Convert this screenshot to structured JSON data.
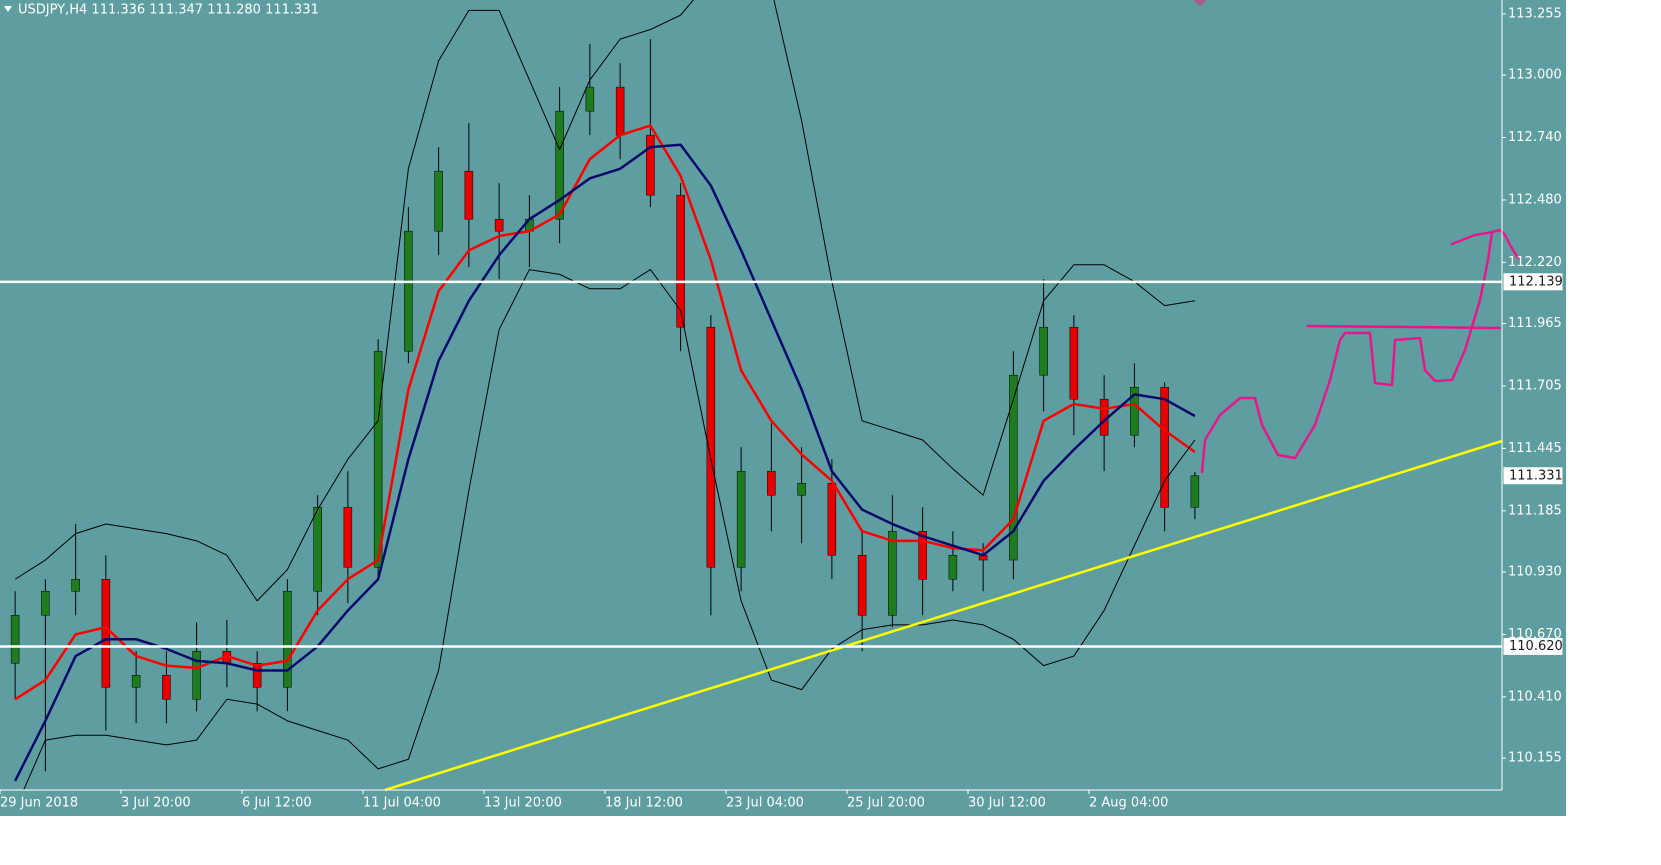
{
  "chart_data": {
    "type": "candlestick",
    "title": "USDJPY,H4  111.336 111.347 111.280 111.331",
    "categories": [
      "29 Jun 2018",
      null,
      null,
      null,
      "3 Jul 20:00",
      null,
      null,
      null,
      "6 Jul 12:00",
      null,
      null,
      null,
      "11 Jul 04:00",
      null,
      null,
      null,
      "13 Jul 20:00",
      null,
      null,
      null,
      "18 Jul 12:00",
      null,
      null,
      null,
      "23 Jul 04:00",
      null,
      null,
      null,
      "25 Jul 20:00",
      null,
      null,
      null,
      "30 Jul 12:00",
      null,
      null,
      null,
      "2 Aug 04:00",
      null,
      null,
      null
    ],
    "open": [
      110.55,
      110.75,
      110.85,
      110.9,
      110.45,
      110.5,
      110.4,
      110.6,
      110.55,
      110.45,
      110.85,
      111.2,
      110.95,
      111.85,
      112.35,
      112.6,
      112.4,
      112.35,
      112.4,
      112.85,
      112.95,
      112.75,
      112.5,
      111.95,
      110.95,
      111.35,
      111.25,
      111.3,
      111.0,
      110.75,
      111.1,
      110.9,
      111.0,
      110.98,
      111.75,
      111.95,
      111.65,
      111.5,
      111.7,
      111.2
    ],
    "high": [
      110.85,
      110.9,
      111.13,
      111.0,
      110.6,
      110.6,
      110.72,
      110.73,
      110.6,
      110.9,
      111.25,
      111.35,
      111.9,
      112.45,
      112.7,
      112.8,
      112.55,
      112.5,
      112.95,
      113.13,
      113.05,
      113.15,
      112.55,
      112.0,
      111.45,
      111.55,
      111.45,
      111.4,
      111.1,
      111.25,
      111.2,
      111.1,
      111.05,
      111.85,
      112.15,
      112.0,
      111.75,
      111.8,
      111.72,
      111.347
    ],
    "low": [
      110.4,
      110.1,
      110.75,
      110.27,
      110.3,
      110.3,
      110.35,
      110.45,
      110.35,
      110.35,
      110.75,
      110.8,
      110.9,
      111.8,
      112.25,
      112.2,
      112.15,
      112.2,
      112.3,
      112.75,
      112.65,
      112.45,
      111.85,
      110.75,
      110.85,
      111.1,
      111.05,
      110.9,
      110.6,
      110.7,
      110.75,
      110.85,
      110.85,
      110.9,
      111.6,
      111.5,
      111.35,
      111.45,
      111.1,
      111.15
    ],
    "close": [
      110.75,
      110.85,
      110.9,
      110.45,
      110.5,
      110.4,
      110.6,
      110.55,
      110.45,
      110.85,
      111.2,
      110.95,
      111.85,
      112.35,
      112.6,
      112.4,
      112.35,
      112.4,
      112.85,
      112.95,
      112.75,
      112.5,
      111.95,
      110.95,
      111.35,
      111.25,
      111.3,
      111.0,
      110.75,
      111.1,
      110.9,
      111.0,
      110.98,
      111.75,
      111.95,
      111.65,
      111.5,
      111.7,
      111.2,
      111.331
    ],
    "up_color": "#1e7b1e",
    "down_color": "#e60000",
    "wick_color": "#000000",
    "lines": [
      {
        "color": "#ff0000",
        "values": [
          110.4,
          110.48,
          110.67,
          110.7,
          110.58,
          110.54,
          110.53,
          110.58,
          110.54,
          110.56,
          110.77,
          110.9,
          110.98,
          111.69,
          112.1,
          112.27,
          112.33,
          112.35,
          112.42,
          112.65,
          112.75,
          112.79,
          112.58,
          112.23,
          111.77,
          111.56,
          111.42,
          111.31,
          111.1,
          111.06,
          111.06,
          111.03,
          111.02,
          111.15,
          111.56,
          111.63,
          111.61,
          111.63,
          111.52,
          111.43
        ]
      },
      {
        "color": "#0a0a6e",
        "values": [
          110.06,
          110.31,
          110.58,
          110.65,
          110.65,
          110.61,
          110.56,
          110.55,
          110.52,
          110.52,
          110.62,
          110.77,
          110.9,
          111.4,
          111.81,
          112.06,
          112.25,
          112.4,
          112.48,
          112.57,
          112.61,
          112.7,
          112.71,
          112.54,
          112.27,
          111.98,
          111.69,
          111.35,
          111.19,
          111.13,
          111.08,
          111.04,
          111.0,
          111.1,
          111.31,
          111.44,
          111.56,
          111.67,
          111.65,
          111.58
        ]
      },
      {
        "color": "#000000",
        "values": [
          110.9,
          110.98,
          111.09,
          111.13,
          111.11,
          111.09,
          111.06,
          111.0,
          110.81,
          110.94,
          111.19,
          111.4,
          111.56,
          112.61,
          113.06,
          113.27,
          113.27,
          112.98,
          112.69,
          112.98,
          113.15,
          113.19,
          113.25,
          113.4,
          113.44,
          113.36,
          112.81,
          112.14,
          111.56,
          111.52,
          111.48,
          111.36,
          111.25,
          111.65,
          112.06,
          112.21,
          112.21,
          112.14,
          112.04,
          112.06
        ]
      },
      {
        "color": "#000000",
        "values": [
          109.94,
          110.23,
          110.25,
          110.25,
          110.23,
          110.21,
          110.23,
          110.4,
          110.38,
          110.31,
          110.27,
          110.23,
          110.11,
          110.15,
          110.52,
          111.27,
          111.94,
          112.19,
          112.17,
          112.11,
          112.11,
          112.19,
          112.02,
          111.4,
          110.81,
          110.48,
          110.44,
          110.61,
          110.69,
          110.71,
          110.71,
          110.73,
          110.71,
          110.65,
          110.54,
          110.58,
          110.77,
          111.04,
          111.31,
          111.48
        ]
      }
    ],
    "hlines": [
      {
        "value": 112.139,
        "color": "#ffffff"
      },
      {
        "value": {
          "value": 110.62,
          "label": "110.620"
        },
        "color": "#ffffff"
      }
    ],
    "last_price": 111.331,
    "ylim": [
      110.022,
      113.313
    ],
    "yticks": [
      113.255,
      {
        "value": 113,
        "label": "113.000"
      },
      {
        "value": 112.74,
        "label": "112.740"
      },
      {
        "value": 112.48,
        "label": "112.480"
      },
      {
        "value": 112.22,
        "label": "112.220"
      },
      111.965,
      111.705,
      111.445,
      111.185,
      {
        "value": 110.93,
        "label": "110.930"
      },
      {
        "value": 110.67,
        "label": "110.670"
      },
      {
        "value": 110.41,
        "label": "110.410"
      },
      110.155
    ],
    "background": "#5f9ea0",
    "grid": false
  }
}
